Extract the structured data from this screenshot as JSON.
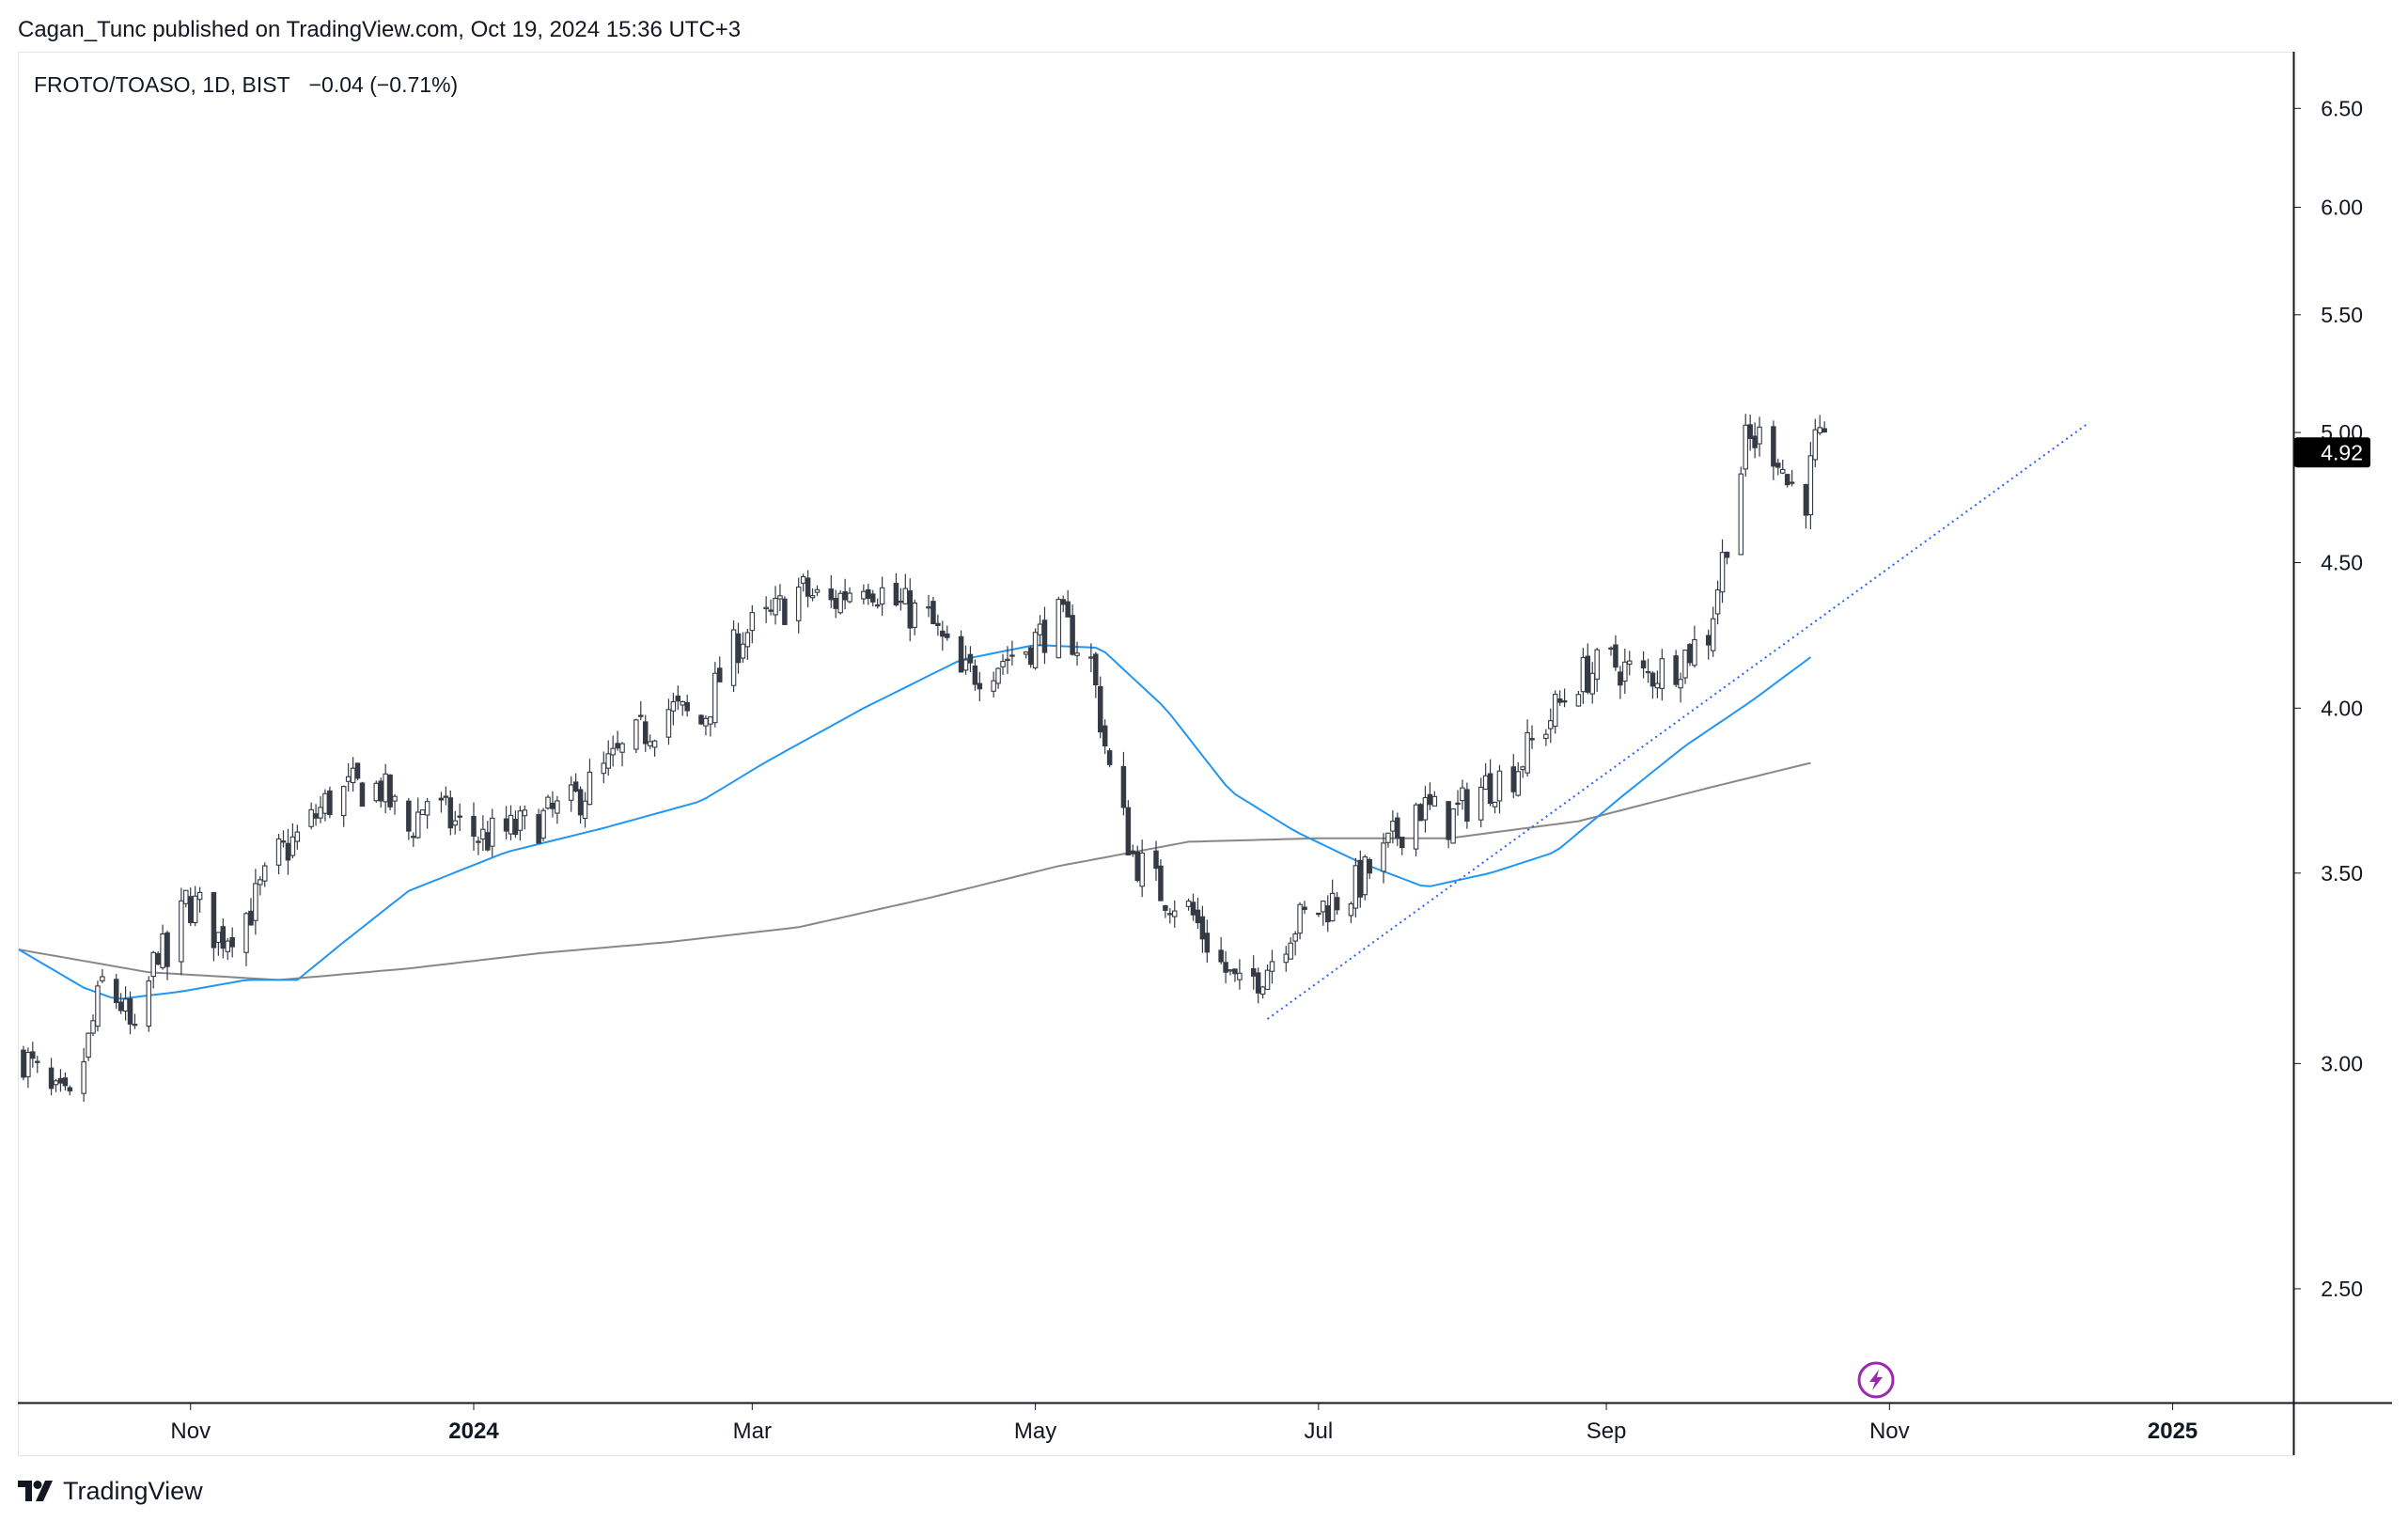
{
  "header": {
    "published_text": "Cagan_Tunc published on TradingView.com, Oct 19, 2024 15:36 UTC+3"
  },
  "legend": {
    "symbol_text": "FROTO/TOASO, 1D, BIST",
    "change_text": "−0.04 (−0.71%)"
  },
  "footer": {
    "brand_text": "TradingView"
  },
  "colors": {
    "candle": "#363a45",
    "ma_fast": "#2196f3",
    "ma_slow": "#888888",
    "trendline": "#2962ff",
    "price_label_bg": "#000000",
    "event_icon": "#9c27b0"
  },
  "icons": {
    "event": "lightning-icon",
    "logo": "tradingview-logo-icon"
  },
  "chart_data": {
    "type": "candlestick",
    "title": "",
    "symbol": "FROTO/TOASO",
    "interval": "1D",
    "exchange": "BIST",
    "y_scale": "log",
    "ylim": [
      2.28,
      6.8
    ],
    "y_ticks": [
      {
        "value": 2.5,
        "label": "2.50"
      },
      {
        "value": 3.0,
        "label": "3.00"
      },
      {
        "value": 3.5,
        "label": "3.50"
      },
      {
        "value": 4.0,
        "label": "4.00"
      },
      {
        "value": 4.5,
        "label": "4.50"
      },
      {
        "value": 5.0,
        "label": "5.00"
      },
      {
        "value": 5.5,
        "label": "5.50"
      },
      {
        "value": 6.0,
        "label": "6.00"
      },
      {
        "value": 6.5,
        "label": "6.50"
      }
    ],
    "x_range": [
      "2023-09-25",
      "2025-01-27"
    ],
    "x_ticks": [
      {
        "date": "2023-11-01",
        "label": "Nov",
        "bold": false
      },
      {
        "date": "2024-01-01",
        "label": "2024",
        "bold": true
      },
      {
        "date": "2024-03-01",
        "label": "Mar",
        "bold": false
      },
      {
        "date": "2024-05-01",
        "label": "May",
        "bold": false
      },
      {
        "date": "2024-07-01",
        "label": "Jul",
        "bold": false
      },
      {
        "date": "2024-09-01",
        "label": "Sep",
        "bold": false
      },
      {
        "date": "2024-11-01",
        "label": "Nov",
        "bold": false
      },
      {
        "date": "2025-01-01",
        "label": "2025",
        "bold": true
      }
    ],
    "last_price": {
      "value": 4.92,
      "label": "4.92"
    },
    "close_series": {
      "dates": [
        "2023-09-26",
        "2023-10-02",
        "2023-10-06",
        "2023-10-10",
        "2023-10-13",
        "2023-10-17",
        "2023-10-20",
        "2023-10-25",
        "2023-10-27",
        "2023-10-31",
        "2023-11-03",
        "2023-11-07",
        "2023-11-10",
        "2023-11-14",
        "2023-11-20",
        "2023-11-24",
        "2023-11-30",
        "2023-12-06",
        "2023-12-12",
        "2023-12-18",
        "2023-12-22",
        "2023-12-27",
        "2024-01-03",
        "2024-01-09",
        "2024-01-15",
        "2024-01-22",
        "2024-01-29",
        "2024-02-05",
        "2024-02-12",
        "2024-02-19",
        "2024-02-23",
        "2024-02-28",
        "2024-03-05",
        "2024-03-11",
        "2024-03-18",
        "2024-03-25",
        "2024-04-01",
        "2024-04-08",
        "2024-04-15",
        "2024-04-22",
        "2024-04-29",
        "2024-05-06",
        "2024-05-13",
        "2024-05-17",
        "2024-05-22",
        "2024-05-28",
        "2024-06-03",
        "2024-06-10",
        "2024-06-14",
        "2024-06-20",
        "2024-06-25",
        "2024-07-01",
        "2024-07-08",
        "2024-07-15",
        "2024-07-22",
        "2024-07-29",
        "2024-08-05",
        "2024-08-12",
        "2024-08-19",
        "2024-08-26",
        "2024-09-02",
        "2024-09-09",
        "2024-09-16",
        "2024-09-23",
        "2024-09-27",
        "2024-10-01",
        "2024-10-04",
        "2024-10-08",
        "2024-10-10",
        "2024-10-14",
        "2024-10-16",
        "2024-10-18"
      ],
      "values": [
        3.02,
        2.92,
        2.9,
        3.05,
        3.2,
        3.15,
        3.05,
        3.3,
        3.25,
        3.42,
        3.4,
        3.32,
        3.35,
        3.4,
        3.55,
        3.6,
        3.7,
        3.75,
        3.75,
        3.62,
        3.72,
        3.65,
        3.6,
        3.62,
        3.65,
        3.7,
        3.8,
        3.9,
        4.0,
        3.95,
        4.1,
        4.25,
        4.3,
        4.4,
        4.35,
        4.45,
        4.35,
        4.3,
        4.1,
        4.15,
        4.2,
        4.3,
        4.15,
        3.8,
        3.55,
        3.45,
        3.4,
        3.25,
        3.18,
        3.25,
        3.35,
        3.4,
        3.45,
        3.55,
        3.7,
        3.65,
        3.75,
        3.8,
        3.95,
        4.1,
        4.15,
        4.1,
        4.15,
        4.25,
        4.6,
        4.95,
        4.98,
        4.92,
        4.8,
        4.75,
        4.95,
        4.92
      ]
    },
    "series": [
      {
        "type": "moving-average",
        "color": "#2196f3",
        "dates": [
          "2023-09-25",
          "2023-10-09",
          "2023-10-16",
          "2023-10-30",
          "2023-11-13",
          "2023-11-24",
          "2023-12-04",
          "2023-12-18",
          "2024-01-08",
          "2024-01-29",
          "2024-02-19",
          "2024-03-04",
          "2024-03-25",
          "2024-04-15",
          "2024-05-01",
          "2024-05-15",
          "2024-05-29",
          "2024-06-12",
          "2024-06-26",
          "2024-07-10",
          "2024-07-24",
          "2024-08-07",
          "2024-08-21",
          "2024-09-04",
          "2024-09-18",
          "2024-10-02",
          "2024-10-16"
        ],
        "values": [
          3.29,
          3.19,
          3.16,
          3.18,
          3.21,
          3.21,
          3.31,
          3.45,
          3.56,
          3.63,
          3.71,
          3.83,
          4.0,
          4.16,
          4.21,
          4.2,
          4.0,
          3.74,
          3.62,
          3.53,
          3.46,
          3.5,
          3.56,
          3.72,
          3.88,
          4.02,
          4.18
        ]
      },
      {
        "type": "moving-average",
        "color": "#888888",
        "dates": [
          "2023-09-25",
          "2023-10-23",
          "2023-11-20",
          "2023-12-18",
          "2024-01-15",
          "2024-02-12",
          "2024-03-11",
          "2024-04-08",
          "2024-05-06",
          "2024-06-03",
          "2024-07-01",
          "2024-07-29",
          "2024-08-26",
          "2024-09-23",
          "2024-10-16"
        ],
        "values": [
          3.29,
          3.23,
          3.21,
          3.24,
          3.28,
          3.31,
          3.35,
          3.43,
          3.52,
          3.59,
          3.6,
          3.6,
          3.65,
          3.75,
          3.83
        ]
      }
    ],
    "trendline": {
      "style": "dotted",
      "points": [
        {
          "date": "2024-06-20",
          "value": 3.11
        },
        {
          "date": "2024-12-14",
          "value": 5.04
        }
      ]
    }
  }
}
